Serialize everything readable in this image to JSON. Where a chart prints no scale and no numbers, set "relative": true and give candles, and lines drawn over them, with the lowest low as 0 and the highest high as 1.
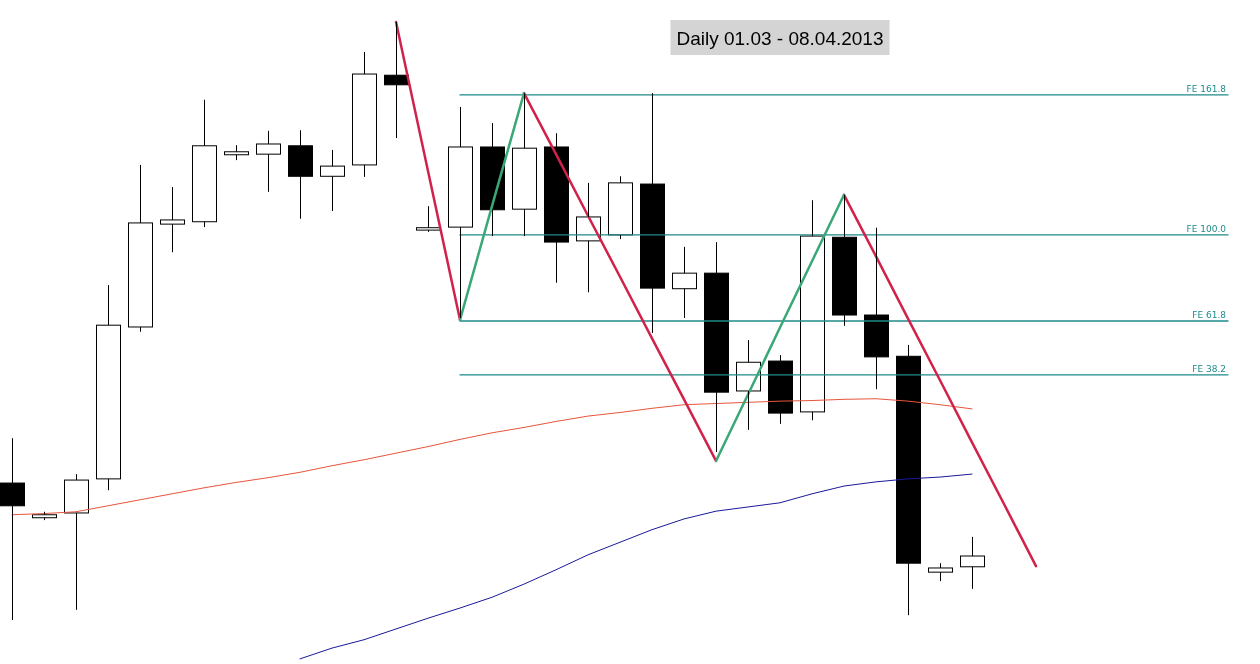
{
  "chart_data": {
    "type": "candlestick",
    "title": "Daily 01.03 - 08.04.2013",
    "relative": true,
    "categories": [
      null,
      null,
      null,
      null,
      null,
      null,
      null,
      null,
      null,
      null,
      null,
      null,
      null,
      null,
      null,
      null,
      null,
      null,
      null,
      null,
      null,
      null,
      null,
      null,
      null,
      null,
      null,
      null,
      null,
      null,
      null,
      null,
      null,
      null,
      null,
      null,
      null,
      null,
      null
    ],
    "ohlc": [
      [
        0.229,
        0.304,
        0,
        0.191
      ],
      [
        0.171,
        0.181,
        0.167,
        0.176
      ],
      [
        0.179,
        0.244,
        0.017,
        0.234
      ],
      [
        0.236,
        0.56,
        0.217,
        0.493
      ],
      [
        0.49,
        0.761,
        0.482,
        0.664
      ],
      [
        0.662,
        0.724,
        0.615,
        0.669
      ],
      [
        0.666,
        0.87,
        0.657,
        0.793
      ],
      [
        0.778,
        0.794,
        0.769,
        0.783
      ],
      [
        0.779,
        0.818,
        0.716,
        0.796
      ],
      [
        0.793,
        0.819,
        0.671,
        0.742
      ],
      [
        0.742,
        0.786,
        0.684,
        0.759
      ],
      [
        0.761,
        0.95,
        0.741,
        0.913
      ],
      [
        0.911,
        1,
        0.806,
        0.895
      ],
      [
        0.652,
        0.692,
        0.649,
        0.656
      ],
      [
        0.657,
        0.858,
        0.505,
        0.791
      ],
      [
        0.791,
        0.831,
        0.642,
        0.686
      ],
      [
        0.687,
        0.881,
        0.642,
        0.789
      ],
      [
        0.791,
        0.814,
        0.564,
        0.632
      ],
      [
        0.634,
        0.731,
        0.548,
        0.674
      ],
      [
        0.644,
        0.742,
        0.637,
        0.731
      ],
      [
        0.729,
        0.881,
        0.48,
        0.555
      ],
      [
        0.554,
        0.624,
        0.505,
        0.58
      ],
      [
        0.58,
        0.632,
        0.281,
        0.381
      ],
      [
        0.383,
        0.468,
        0.318,
        0.431
      ],
      [
        0.433,
        0.443,
        0.328,
        0.346
      ],
      [
        0.348,
        0.702,
        0.334,
        0.642
      ],
      [
        0.64,
        0.711,
        0.492,
        0.51
      ],
      [
        0.51,
        0.656,
        0.386,
        0.44
      ],
      [
        0.441,
        0.46,
        0.008,
        0.095
      ],
      [
        0.08,
        0.095,
        0.065,
        0.087
      ],
      [
        0.089,
        0.139,
        0.052,
        0.107
      ],
      null,
      null,
      null,
      null,
      null,
      null,
      null,
      null
    ],
    "series": [
      {
        "type": "line",
        "name": "FE 161.8",
        "color": "#1f8a8a",
        "values": [
          null,
          null,
          null,
          null,
          null,
          null,
          null,
          null,
          null,
          null,
          null,
          null,
          null,
          null,
          0.878,
          0.878,
          0.878,
          0.878,
          0.878,
          0.878,
          0.878,
          0.878,
          0.878,
          0.878,
          0.878,
          0.878,
          0.878,
          0.878,
          0.878,
          0.878,
          0.878,
          0.878,
          0.878,
          0.878,
          0.878,
          0.878,
          0.878,
          0.878,
          0.878
        ]
      },
      {
        "type": "line",
        "name": "FE 100.0",
        "color": "#1f8a8a",
        "values": [
          null,
          null,
          null,
          null,
          null,
          null,
          null,
          null,
          null,
          null,
          null,
          null,
          null,
          null,
          0.644,
          0.644,
          0.644,
          0.644,
          0.644,
          0.644,
          0.644,
          0.644,
          0.644,
          0.644,
          0.644,
          0.644,
          0.644,
          0.644,
          0.644,
          0.644,
          0.644,
          0.644,
          0.644,
          0.644,
          0.644,
          0.644,
          0.644,
          0.644,
          0.644
        ]
      },
      {
        "type": "line",
        "name": "FE 61.8",
        "color": "#1f8a8a",
        "values": [
          null,
          null,
          null,
          null,
          null,
          null,
          null,
          null,
          null,
          null,
          null,
          null,
          null,
          null,
          0.5,
          0.5,
          0.5,
          0.5,
          0.5,
          0.5,
          0.5,
          0.5,
          0.5,
          0.5,
          0.5,
          0.5,
          0.5,
          0.5,
          0.5,
          0.5,
          0.5,
          0.5,
          0.5,
          0.5,
          0.5,
          0.5,
          0.5,
          0.5,
          0.5
        ]
      },
      {
        "type": "line",
        "name": "FE 38.2",
        "color": "#1f8a8a",
        "values": [
          null,
          null,
          null,
          null,
          null,
          null,
          null,
          null,
          null,
          null,
          null,
          null,
          null,
          null,
          0.41,
          0.41,
          0.41,
          0.41,
          0.41,
          0.41,
          0.41,
          0.41,
          0.41,
          0.41,
          0.41,
          0.41,
          0.41,
          0.41,
          0.41,
          0.41,
          0.41,
          0.41,
          0.41,
          0.41,
          0.41,
          0.41,
          0.41,
          0.41,
          0.41
        ]
      },
      {
        "type": "line",
        "color": "#e8553c",
        "values": [
          0.176,
          0.178,
          0.181,
          0.191,
          0.201,
          0.211,
          0.221,
          0.23,
          0.238,
          0.247,
          0.258,
          0.268,
          0.279,
          0.29,
          0.302,
          0.313,
          0.322,
          0.332,
          0.341,
          0.347,
          0.354,
          0.36,
          0.362,
          0.364,
          0.366,
          0.367,
          0.369,
          0.37,
          0.366,
          0.36,
          0.353,
          null,
          null,
          null,
          null,
          null,
          null,
          null,
          null
        ]
      },
      {
        "type": "line",
        "color": "#1a1a9a",
        "values": [
          null,
          null,
          null,
          null,
          null,
          null,
          null,
          null,
          null,
          -0.065,
          -0.047,
          -0.033,
          -0.015,
          0.003,
          0.02,
          0.038,
          0.06,
          0.084,
          0.109,
          0.13,
          0.151,
          0.169,
          0.182,
          0.189,
          0.196,
          0.211,
          0.224,
          0.231,
          0.236,
          0.239,
          0.244,
          null,
          null,
          null,
          null,
          null,
          null,
          null,
          null
        ]
      },
      {
        "type": "line",
        "color": "#d0224a",
        "values": [
          null,
          null,
          null,
          null,
          null,
          null,
          null,
          null,
          null,
          null,
          null,
          null,
          1,
          0.751,
          0.502,
          null,
          0.881,
          0.779,
          0.676,
          0.574,
          0.471,
          0.369,
          0.266,
          null,
          null,
          null,
          0.711,
          0.608,
          0.504,
          0.401,
          0.297,
          0.194,
          0.09,
          null,
          null,
          null,
          null,
          null,
          null
        ]
      },
      {
        "type": "line",
        "color": "#3aa876",
        "values": [
          null,
          null,
          null,
          null,
          null,
          null,
          null,
          null,
          null,
          null,
          null,
          null,
          null,
          null,
          0.502,
          0.692,
          0.881,
          null,
          null,
          null,
          null,
          null,
          0.266,
          0.377,
          0.489,
          0.6,
          0.711,
          null,
          null,
          null,
          null,
          null,
          null,
          null,
          null,
          null,
          null,
          null,
          null
        ]
      }
    ]
  }
}
